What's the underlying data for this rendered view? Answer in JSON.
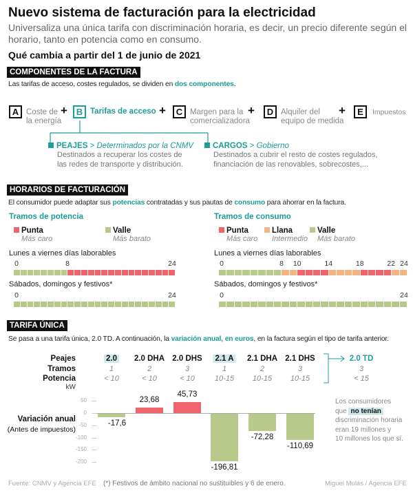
{
  "title": "Nuevo sistema de facturación para la electricidad",
  "subtitle": "Universaliza una única tarifa con discriminación horaria, es decir, un precio diferente según el horario, tanto en potencia como en consumo.",
  "question": "Qué cambia a partir del 1 de junio de 2021",
  "components": {
    "header": "COMPONENTES DE LA FACTURA",
    "intro_pre": "Las tarifas de acceso, costes regulados, se dividen en ",
    "intro_hl": "dos componentes",
    "intro_post": ".",
    "items": [
      {
        "letter": "A",
        "label": "Coste de\nla energía"
      },
      {
        "letter": "B",
        "label": "Tarifas de acceso"
      },
      {
        "letter": "C",
        "label": "Margen para la\ncomercializadora"
      },
      {
        "letter": "D",
        "label": "Alquiler del\nequipo de medida"
      },
      {
        "letter": "E",
        "label": "Impuestos"
      }
    ],
    "plus": "+",
    "peajes": {
      "name": "PEAJES",
      "arrow": " > ",
      "who": "Determinados por la CNMV",
      "desc1": "Destinados a recuperar los costes de",
      "desc2": "las redes de transporte y distribución."
    },
    "cargos": {
      "name": "CARGOS",
      "arrow": " > ",
      "who": "Gobierno",
      "desc1": "Destinados a cubrir el resto de costes regulados,",
      "desc2": "financiación de las renovables, sobrecostes,..."
    }
  },
  "horarios": {
    "header": "HORARIOS DE FACTURACIÓN",
    "intro_a": "El consumidor puede adaptar sus ",
    "intro_b": "potencias",
    "intro_c": " contratadas y sus pautas de ",
    "intro_d": "consumo",
    "intro_e": " para ahorrar en la factura.",
    "colors": {
      "punta": "#ef646b",
      "llana": "#f4b383",
      "valle": "#b7c98b"
    },
    "potencia": {
      "title": "Tramos de potencia",
      "legend": [
        {
          "key": "punta",
          "label": "Punta",
          "sub": "Más caro"
        },
        {
          "key": "valle",
          "label": "Valle",
          "sub": "Más barato"
        }
      ],
      "weekday_label": "Lunes a viernes días laborables",
      "weekday_ticks": [
        "0",
        "8",
        "24"
      ],
      "weekday": [
        {
          "from": 0,
          "to": 8,
          "type": "valle"
        },
        {
          "from": 8,
          "to": 24,
          "type": "punta"
        }
      ],
      "weekend_label": "Sábados, domingos y festivos*",
      "weekend_ticks": [
        "0",
        "24"
      ],
      "weekend": [
        {
          "from": 0,
          "to": 24,
          "type": "valle"
        }
      ]
    },
    "consumo": {
      "title": "Tramos de consumo",
      "legend": [
        {
          "key": "punta",
          "label": "Punta",
          "sub": "Más caro"
        },
        {
          "key": "llana",
          "label": "Llana",
          "sub": "Intermedio"
        },
        {
          "key": "valle",
          "label": "Valle",
          "sub": "Más barato"
        }
      ],
      "weekday_label": "Lunes a viernes días laborables",
      "weekday_ticks": [
        "0",
        "8",
        "10",
        "14",
        "18",
        "22",
        "24"
      ],
      "weekday": [
        {
          "from": 0,
          "to": 8,
          "type": "valle"
        },
        {
          "from": 8,
          "to": 10,
          "type": "llana"
        },
        {
          "from": 10,
          "to": 14,
          "type": "punta"
        },
        {
          "from": 14,
          "to": 18,
          "type": "llana"
        },
        {
          "from": 18,
          "to": 22,
          "type": "punta"
        },
        {
          "from": 22,
          "to": 24,
          "type": "llana"
        }
      ],
      "weekend_label": "Sábados, domingos y festivos*",
      "weekend_ticks": [
        "0",
        "24"
      ],
      "weekend": [
        {
          "from": 0,
          "to": 24,
          "type": "valle"
        }
      ]
    }
  },
  "tarifa": {
    "header": "TARIFA ÚNICA",
    "intro_a": "Se pasa a una tarifa única, 2.0 TD. A continuación, la ",
    "intro_b": "variación anual, en euros",
    "intro_c": ", en la factura según el tipo de tarifa anterior.",
    "row_labels": {
      "peajes": "Peajes",
      "tramos": "Tramos",
      "potencia": "Potencia",
      "unit": "kW",
      "variacion": "Variación anual",
      "variacion_sub": "(Antes de impuestos)"
    },
    "new": {
      "peaje": "2.0 TD",
      "tramos": "3",
      "potencia": "< 15"
    },
    "note": {
      "a": "Los consumidores",
      "b": "que ",
      "hl": "no tenían",
      "c": "discriminación horaria",
      "d": "eran 19 millones y",
      "e": "10 millones los que sí."
    }
  },
  "chart_data": {
    "type": "bar",
    "categories": [
      "2.0",
      "2.0 DHA",
      "2.0 DHS",
      "2.1 A",
      "2.1 DHA",
      "2.1 DHS"
    ],
    "highlighted": [
      true,
      false,
      false,
      true,
      false,
      false
    ],
    "tramos": [
      "1",
      "2",
      "3",
      "1",
      "2",
      "3"
    ],
    "potencia": [
      "< 10",
      "< 10",
      "< 10",
      "10-15",
      "10-15",
      "10-15"
    ],
    "values": [
      -17.6,
      23.68,
      45.73,
      -196.81,
      -72.28,
      -110.69
    ],
    "labels": [
      "-17,6",
      "23,68",
      "45,73",
      "-196,81",
      "-72,28",
      "-110,69"
    ],
    "ylabel": "Variación anual",
    "yticks": [
      50,
      0,
      -50,
      -100,
      -150,
      -200
    ],
    "ylim": [
      -210,
      60
    ],
    "colors": {
      "positive": "#ef646b",
      "negative": "#b7c98b"
    }
  },
  "footer": {
    "source": "Fuente: CNMV y Agencia EFE",
    "note": "(*) Festivos de ámbito nacional no sustituibles y 6 de enero.",
    "credit": "Miguel Mulás / Agencia EFE"
  }
}
